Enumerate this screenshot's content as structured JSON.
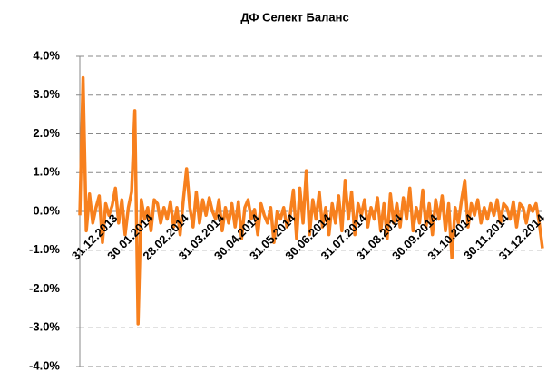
{
  "chart_data": {
    "type": "line",
    "title": "ДФ Селект Баланс",
    "categories": [
      "31.12.2013",
      null,
      null,
      null,
      null,
      null,
      null,
      null,
      null,
      null,
      null,
      "30.01.2014",
      null,
      null,
      null,
      null,
      null,
      null,
      null,
      null,
      null,
      null,
      "28.02.2014",
      null,
      null,
      null,
      null,
      null,
      null,
      null,
      null,
      null,
      null,
      "31.03.2014",
      null,
      null,
      null,
      null,
      null,
      null,
      null,
      null,
      null,
      null,
      "30.04.2014",
      null,
      null,
      null,
      null,
      null,
      null,
      null,
      null,
      null,
      null,
      "31.05.2014",
      null,
      null,
      null,
      null,
      null,
      null,
      null,
      null,
      null,
      null,
      "30.06.2014",
      null,
      null,
      null,
      null,
      null,
      null,
      null,
      null,
      null,
      null,
      "31.07.2014",
      null,
      null,
      null,
      null,
      null,
      null,
      null,
      null,
      null,
      null,
      "31.08.2014",
      null,
      null,
      null,
      null,
      null,
      null,
      null,
      null,
      null,
      null,
      "30.09.2014",
      null,
      null,
      null,
      null,
      null,
      null,
      null,
      null,
      null,
      null,
      "31.10.2014",
      null,
      null,
      null,
      null,
      null,
      null,
      null,
      null,
      null,
      null,
      "30.11.2014",
      null,
      null,
      null,
      null,
      null,
      null,
      null,
      null,
      null,
      null,
      "31.12.2014",
      null,
      null,
      null,
      null,
      null,
      null,
      null,
      null,
      null,
      null,
      null
    ],
    "values": [
      -0.1,
      3.45,
      -0.5,
      0.45,
      -0.3,
      0.1,
      0.4,
      -0.8,
      0.2,
      -0.1,
      0.15,
      0.6,
      -0.3,
      0.3,
      -0.6,
      0.1,
      0.5,
      2.6,
      -2.9,
      0.3,
      -0.2,
      0.1,
      -0.5,
      0.3,
      0.2,
      -0.3,
      0.1,
      -0.2,
      0.25,
      -0.4,
      0.1,
      -0.6,
      0.3,
      1.1,
      0.1,
      -0.4,
      0.5,
      -0.3,
      0.3,
      -0.1,
      0.35,
      0.0,
      -0.2,
      0.3,
      -0.5,
      0.1,
      -0.3,
      0.2,
      -0.4,
      0.25,
      -0.7,
      0.1,
      0.3,
      -0.2,
      0.05,
      -0.6,
      0.2,
      -0.1,
      -0.3,
      0.1,
      -0.8,
      0.0,
      -0.2,
      0.1,
      -0.4,
      -0.1,
      0.55,
      -0.7,
      0.6,
      -0.3,
      1.05,
      -0.6,
      0.3,
      -0.2,
      0.5,
      -0.4,
      0.1,
      -0.6,
      0.2,
      -0.3,
      0.4,
      -0.5,
      0.8,
      -0.2,
      0.5,
      -0.6,
      0.2,
      -0.1,
      0.3,
      -0.4,
      0.1,
      -0.2,
      0.35,
      -0.5,
      0.2,
      -0.7,
      0.45,
      -0.3,
      0.2,
      -0.4,
      0.35,
      -0.2,
      0.6,
      -0.5,
      0.1,
      -0.3,
      0.55,
      -0.4,
      0.2,
      -0.6,
      0.3,
      -0.2,
      0.4,
      -0.5,
      0.2,
      -1.2,
      0.1,
      -0.3,
      0.3,
      0.8,
      -0.4,
      0.2,
      -0.1,
      0.3,
      -0.3,
      0.1,
      -0.2,
      0.2,
      -0.1,
      0.3,
      -0.3,
      0.2,
      0.1,
      -0.2,
      0.25,
      -0.4,
      0.2,
      0.1,
      -0.3,
      0.15,
      0.0,
      0.2,
      -0.3,
      -0.95
    ],
    "color": "#f7801e",
    "ylim": [
      -4,
      4
    ],
    "yticks": [
      {
        "value": -4,
        "label": "-4.0%"
      },
      {
        "value": -3,
        "label": "-3.0%"
      },
      {
        "value": -2,
        "label": "-2.0%"
      },
      {
        "value": -1,
        "label": "-1.0%"
      },
      {
        "value": 0,
        "label": "0.0%"
      },
      {
        "value": 1,
        "label": "1.0%"
      },
      {
        "value": 2,
        "label": "2.0%"
      },
      {
        "value": 3,
        "label": "3.0%"
      },
      {
        "value": 4,
        "label": "4.0%"
      }
    ],
    "grid": true
  }
}
